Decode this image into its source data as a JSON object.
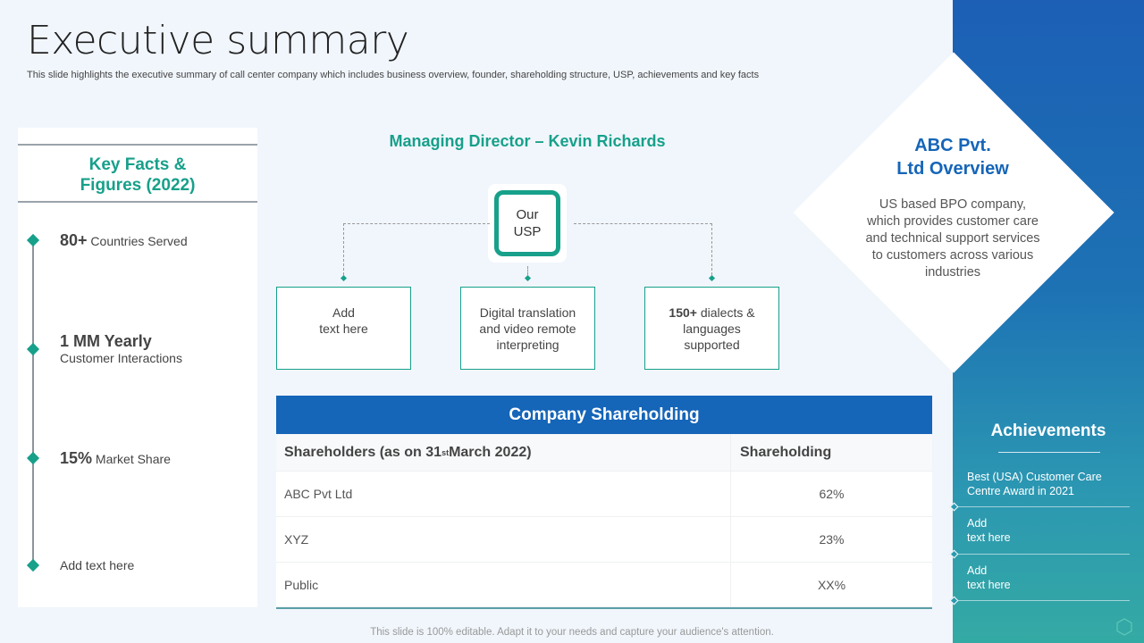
{
  "title": "Executive summary",
  "subtitle": "This slide highlights the executive summary of call center company which includes business overview, founder, shareholding structure, USP, achievements and key facts",
  "key_facts": {
    "heading_line1": "Key Facts &",
    "heading_line2": "Figures (2022)",
    "items": [
      {
        "big": "80+",
        "text": " Countries Served"
      },
      {
        "big": "1 MM Yearly",
        "text": "Customer Interactions"
      },
      {
        "big": "15%",
        "text": " Market Share"
      },
      {
        "big": "",
        "text": "Add text here"
      }
    ]
  },
  "managing_director": "Managing Director – Kevin Richards",
  "usp": {
    "line1": "Our",
    "line2": "USP"
  },
  "usp_boxes": [
    {
      "line1": "Add",
      "line2": "text here",
      "line3": ""
    },
    {
      "line1": "Digital translation",
      "line2": "and video remote",
      "line3": "interpreting"
    },
    {
      "bold": "150+",
      "line1": " dialects &",
      "line2": "languages",
      "line3": "supported"
    }
  ],
  "shareholding": {
    "title": "Company Shareholding",
    "col1_prefix": "Shareholders (as on 31",
    "col1_sup": "st",
    "col1_suffix": " March 2022)",
    "col2": "Shareholding",
    "rows": [
      {
        "name": "ABC Pvt Ltd",
        "value": "62%"
      },
      {
        "name": "XYZ",
        "value": "23%"
      },
      {
        "name": "Public",
        "value": "XX%"
      }
    ]
  },
  "overview": {
    "title_line1": "ABC Pvt.",
    "title_line2": "Ltd Overview",
    "text": "US based BPO company, which provides customer care and technical support services to customers across various industries"
  },
  "achievements": {
    "title": "Achievements",
    "items": [
      {
        "line1": "Best (USA) Customer Care",
        "line2": "Centre Award  in 2021"
      },
      {
        "line1": "Add",
        "line2": "text here"
      },
      {
        "line1": "Add",
        "line2": "text here"
      }
    ]
  },
  "footer": "This slide is 100% editable. Adapt it to your needs and capture your audience's attention.",
  "colors": {
    "accent": "#17a08a",
    "primary": "#1565b8"
  }
}
